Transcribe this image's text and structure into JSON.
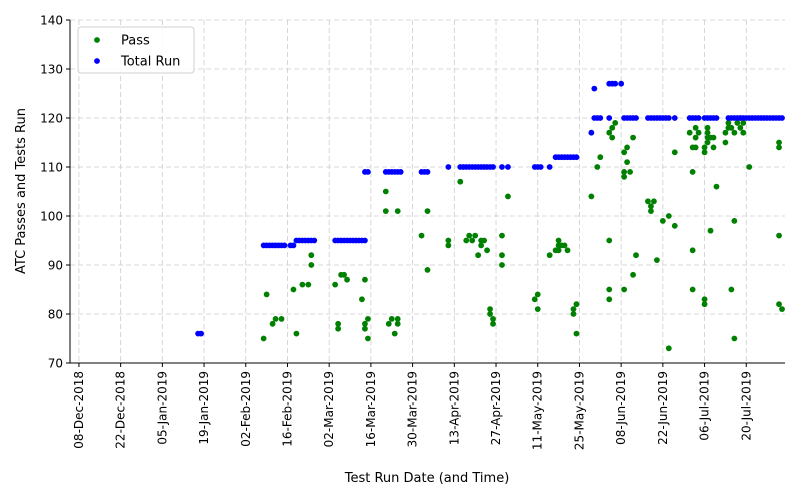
{
  "chart_data": {
    "type": "scatter",
    "xlabel": "Test Run Date (and Time)",
    "ylabel": "ATC Passes and Tests Run",
    "ylim": [
      70,
      140
    ],
    "xlim": [
      "2018-12-05",
      "2019-08-02"
    ],
    "grid": true,
    "legend_position": "top-left",
    "x_ticks": [
      "08-Dec-2018",
      "22-Dec-2018",
      "05-Jan-2019",
      "19-Jan-2019",
      "02-Feb-2019",
      "16-Feb-2019",
      "02-Mar-2019",
      "16-Mar-2019",
      "30-Mar-2019",
      "13-Apr-2019",
      "27-Apr-2019",
      "11-May-2019",
      "25-May-2019",
      "08-Jun-2019",
      "22-Jun-2019",
      "06-Jul-2019",
      "20-Jul-2019"
    ],
    "y_ticks": [
      70,
      80,
      90,
      100,
      110,
      120,
      130,
      140
    ],
    "series": [
      {
        "name": "Pass",
        "color": "#008000",
        "points": [
          [
            "2019-02-08",
            75
          ],
          [
            "2019-02-09",
            84
          ],
          [
            "2019-02-11",
            78
          ],
          [
            "2019-02-12",
            79
          ],
          [
            "2019-02-14",
            79
          ],
          [
            "2019-02-18",
            85
          ],
          [
            "2019-02-19",
            76
          ],
          [
            "2019-02-21",
            86
          ],
          [
            "2019-02-23",
            86
          ],
          [
            "2019-02-24",
            90
          ],
          [
            "2019-02-24",
            92
          ],
          [
            "2019-03-04",
            86
          ],
          [
            "2019-03-05",
            78
          ],
          [
            "2019-03-05",
            77
          ],
          [
            "2019-03-06",
            88
          ],
          [
            "2019-03-07",
            88
          ],
          [
            "2019-03-08",
            87
          ],
          [
            "2019-03-13",
            83
          ],
          [
            "2019-03-14",
            87
          ],
          [
            "2019-03-14",
            78
          ],
          [
            "2019-03-14",
            77
          ],
          [
            "2019-03-15",
            75
          ],
          [
            "2019-03-15",
            79
          ],
          [
            "2019-03-21",
            105
          ],
          [
            "2019-03-21",
            101
          ],
          [
            "2019-03-22",
            78
          ],
          [
            "2019-03-23",
            79
          ],
          [
            "2019-03-24",
            76
          ],
          [
            "2019-03-25",
            101
          ],
          [
            "2019-03-25",
            79
          ],
          [
            "2019-03-25",
            78
          ],
          [
            "2019-04-02",
            96
          ],
          [
            "2019-04-04",
            101
          ],
          [
            "2019-04-04",
            89
          ],
          [
            "2019-04-11",
            95
          ],
          [
            "2019-04-11",
            94
          ],
          [
            "2019-04-15",
            107
          ],
          [
            "2019-04-17",
            95
          ],
          [
            "2019-04-18",
            96
          ],
          [
            "2019-04-19",
            95
          ],
          [
            "2019-04-20",
            96
          ],
          [
            "2019-04-21",
            92
          ],
          [
            "2019-04-22",
            95
          ],
          [
            "2019-04-22",
            94
          ],
          [
            "2019-04-23",
            95
          ],
          [
            "2019-04-24",
            93
          ],
          [
            "2019-04-25",
            81
          ],
          [
            "2019-04-25",
            80
          ],
          [
            "2019-04-26",
            79
          ],
          [
            "2019-04-26",
            78
          ],
          [
            "2019-04-29",
            96
          ],
          [
            "2019-04-29",
            92
          ],
          [
            "2019-04-29",
            90
          ],
          [
            "2019-05-01",
            104
          ],
          [
            "2019-05-10",
            83
          ],
          [
            "2019-05-11",
            84
          ],
          [
            "2019-05-11",
            81
          ],
          [
            "2019-05-15",
            92
          ],
          [
            "2019-05-17",
            93
          ],
          [
            "2019-05-18",
            94
          ],
          [
            "2019-05-18",
            95
          ],
          [
            "2019-05-18",
            93
          ],
          [
            "2019-05-19",
            94
          ],
          [
            "2019-05-20",
            94
          ],
          [
            "2019-05-21",
            93
          ],
          [
            "2019-05-23",
            81
          ],
          [
            "2019-05-23",
            80
          ],
          [
            "2019-05-24",
            82
          ],
          [
            "2019-05-24",
            76
          ],
          [
            "2019-05-29",
            104
          ],
          [
            "2019-05-31",
            110
          ],
          [
            "2019-06-01",
            112
          ],
          [
            "2019-06-04",
            95
          ],
          [
            "2019-06-04",
            85
          ],
          [
            "2019-06-04",
            83
          ],
          [
            "2019-06-04",
            117
          ],
          [
            "2019-06-05",
            118
          ],
          [
            "2019-06-05",
            116
          ],
          [
            "2019-06-06",
            119
          ],
          [
            "2019-06-09",
            85
          ],
          [
            "2019-06-09",
            109
          ],
          [
            "2019-06-09",
            108
          ],
          [
            "2019-06-09",
            113
          ],
          [
            "2019-06-10",
            111
          ],
          [
            "2019-06-10",
            114
          ],
          [
            "2019-06-11",
            109
          ],
          [
            "2019-06-12",
            116
          ],
          [
            "2019-06-12",
            88
          ],
          [
            "2019-06-13",
            92
          ],
          [
            "2019-06-17",
            103
          ],
          [
            "2019-06-18",
            102
          ],
          [
            "2019-06-18",
            101
          ],
          [
            "2019-06-19",
            103
          ],
          [
            "2019-06-20",
            91
          ],
          [
            "2019-06-22",
            99
          ],
          [
            "2019-06-24",
            100
          ],
          [
            "2019-06-24",
            73
          ],
          [
            "2019-06-26",
            113
          ],
          [
            "2019-06-26",
            98
          ],
          [
            "2019-07-01",
            117
          ],
          [
            "2019-07-02",
            114
          ],
          [
            "2019-07-02",
            109
          ],
          [
            "2019-07-02",
            93
          ],
          [
            "2019-07-02",
            85
          ],
          [
            "2019-07-03",
            116
          ],
          [
            "2019-07-03",
            118
          ],
          [
            "2019-07-03",
            114
          ],
          [
            "2019-07-04",
            117
          ],
          [
            "2019-07-06",
            83
          ],
          [
            "2019-07-06",
            82
          ],
          [
            "2019-07-06",
            113
          ],
          [
            "2019-07-06",
            114
          ],
          [
            "2019-07-07",
            116
          ],
          [
            "2019-07-07",
            118
          ],
          [
            "2019-07-07",
            115
          ],
          [
            "2019-07-07",
            117
          ],
          [
            "2019-07-08",
            116
          ],
          [
            "2019-07-08",
            97
          ],
          [
            "2019-07-09",
            114
          ],
          [
            "2019-07-09",
            116
          ],
          [
            "2019-07-10",
            106
          ],
          [
            "2019-07-13",
            115
          ],
          [
            "2019-07-13",
            117
          ],
          [
            "2019-07-14",
            118
          ],
          [
            "2019-07-14",
            119
          ],
          [
            "2019-07-15",
            85
          ],
          [
            "2019-07-15",
            118
          ],
          [
            "2019-07-16",
            99
          ],
          [
            "2019-07-16",
            75
          ],
          [
            "2019-07-16",
            117
          ],
          [
            "2019-07-17",
            119
          ],
          [
            "2019-07-18",
            120
          ],
          [
            "2019-07-18",
            118
          ],
          [
            "2019-07-19",
            119
          ],
          [
            "2019-07-19",
            117
          ],
          [
            "2019-07-21",
            110
          ],
          [
            "2019-07-31",
            115
          ],
          [
            "2019-07-31",
            114
          ],
          [
            "2019-07-31",
            96
          ],
          [
            "2019-07-31",
            82
          ],
          [
            "2019-08-01",
            81
          ]
        ]
      },
      {
        "name": "Total Run",
        "color": "#0000ff",
        "points": [
          [
            "2019-01-17",
            76
          ],
          [
            "2019-01-18",
            76
          ],
          [
            "2019-02-08",
            94
          ],
          [
            "2019-02-09",
            94
          ],
          [
            "2019-02-10",
            94
          ],
          [
            "2019-02-11",
            94
          ],
          [
            "2019-02-12",
            94
          ],
          [
            "2019-02-13",
            94
          ],
          [
            "2019-02-14",
            94
          ],
          [
            "2019-02-15",
            94
          ],
          [
            "2019-02-17",
            94
          ],
          [
            "2019-02-18",
            94
          ],
          [
            "2019-02-19",
            95
          ],
          [
            "2019-02-20",
            95
          ],
          [
            "2019-02-21",
            95
          ],
          [
            "2019-02-22",
            95
          ],
          [
            "2019-02-23",
            95
          ],
          [
            "2019-02-24",
            95
          ],
          [
            "2019-02-25",
            95
          ],
          [
            "2019-03-04",
            95
          ],
          [
            "2019-03-05",
            95
          ],
          [
            "2019-03-06",
            95
          ],
          [
            "2019-03-07",
            95
          ],
          [
            "2019-03-08",
            95
          ],
          [
            "2019-03-09",
            95
          ],
          [
            "2019-03-10",
            95
          ],
          [
            "2019-03-11",
            95
          ],
          [
            "2019-03-12",
            95
          ],
          [
            "2019-03-13",
            95
          ],
          [
            "2019-03-14",
            95
          ],
          [
            "2019-03-14",
            109
          ],
          [
            "2019-03-15",
            109
          ],
          [
            "2019-03-21",
            109
          ],
          [
            "2019-03-22",
            109
          ],
          [
            "2019-03-23",
            109
          ],
          [
            "2019-03-24",
            109
          ],
          [
            "2019-03-25",
            109
          ],
          [
            "2019-03-26",
            109
          ],
          [
            "2019-04-02",
            109
          ],
          [
            "2019-04-03",
            109
          ],
          [
            "2019-04-04",
            109
          ],
          [
            "2019-04-11",
            110
          ],
          [
            "2019-04-15",
            110
          ],
          [
            "2019-04-16",
            110
          ],
          [
            "2019-04-17",
            110
          ],
          [
            "2019-04-18",
            110
          ],
          [
            "2019-04-19",
            110
          ],
          [
            "2019-04-20",
            110
          ],
          [
            "2019-04-21",
            110
          ],
          [
            "2019-04-22",
            110
          ],
          [
            "2019-04-23",
            110
          ],
          [
            "2019-04-24",
            110
          ],
          [
            "2019-04-25",
            110
          ],
          [
            "2019-04-26",
            110
          ],
          [
            "2019-04-29",
            110
          ],
          [
            "2019-05-01",
            110
          ],
          [
            "2019-05-10",
            110
          ],
          [
            "2019-05-11",
            110
          ],
          [
            "2019-05-12",
            110
          ],
          [
            "2019-05-15",
            110
          ],
          [
            "2019-05-17",
            112
          ],
          [
            "2019-05-18",
            112
          ],
          [
            "2019-05-19",
            112
          ],
          [
            "2019-05-20",
            112
          ],
          [
            "2019-05-21",
            112
          ],
          [
            "2019-05-22",
            112
          ],
          [
            "2019-05-23",
            112
          ],
          [
            "2019-05-24",
            112
          ],
          [
            "2019-05-29",
            117
          ],
          [
            "2019-05-30",
            126
          ],
          [
            "2019-05-30",
            120
          ],
          [
            "2019-05-31",
            120
          ],
          [
            "2019-06-01",
            120
          ],
          [
            "2019-06-04",
            120
          ],
          [
            "2019-06-04",
            127
          ],
          [
            "2019-06-05",
            127
          ],
          [
            "2019-06-06",
            127
          ],
          [
            "2019-06-08",
            127
          ],
          [
            "2019-06-09",
            120
          ],
          [
            "2019-06-10",
            120
          ],
          [
            "2019-06-11",
            120
          ],
          [
            "2019-06-12",
            120
          ],
          [
            "2019-06-13",
            120
          ],
          [
            "2019-06-17",
            120
          ],
          [
            "2019-06-18",
            120
          ],
          [
            "2019-06-19",
            120
          ],
          [
            "2019-06-20",
            120
          ],
          [
            "2019-06-21",
            120
          ],
          [
            "2019-06-22",
            120
          ],
          [
            "2019-06-23",
            120
          ],
          [
            "2019-06-24",
            120
          ],
          [
            "2019-06-26",
            120
          ],
          [
            "2019-07-01",
            120
          ],
          [
            "2019-07-02",
            120
          ],
          [
            "2019-07-03",
            120
          ],
          [
            "2019-07-04",
            120
          ],
          [
            "2019-07-06",
            120
          ],
          [
            "2019-07-07",
            120
          ],
          [
            "2019-07-08",
            120
          ],
          [
            "2019-07-09",
            120
          ],
          [
            "2019-07-10",
            120
          ],
          [
            "2019-07-14",
            120
          ],
          [
            "2019-07-15",
            120
          ],
          [
            "2019-07-16",
            120
          ],
          [
            "2019-07-17",
            120
          ],
          [
            "2019-07-18",
            120
          ],
          [
            "2019-07-19",
            120
          ],
          [
            "2019-07-20",
            120
          ],
          [
            "2019-07-21",
            120
          ],
          [
            "2019-07-22",
            120
          ],
          [
            "2019-07-23",
            120
          ],
          [
            "2019-07-24",
            120
          ],
          [
            "2019-07-25",
            120
          ],
          [
            "2019-07-26",
            120
          ],
          [
            "2019-07-27",
            120
          ],
          [
            "2019-07-28",
            120
          ],
          [
            "2019-07-29",
            120
          ],
          [
            "2019-07-30",
            120
          ],
          [
            "2019-07-31",
            120
          ],
          [
            "2019-08-01",
            120
          ]
        ]
      }
    ]
  }
}
